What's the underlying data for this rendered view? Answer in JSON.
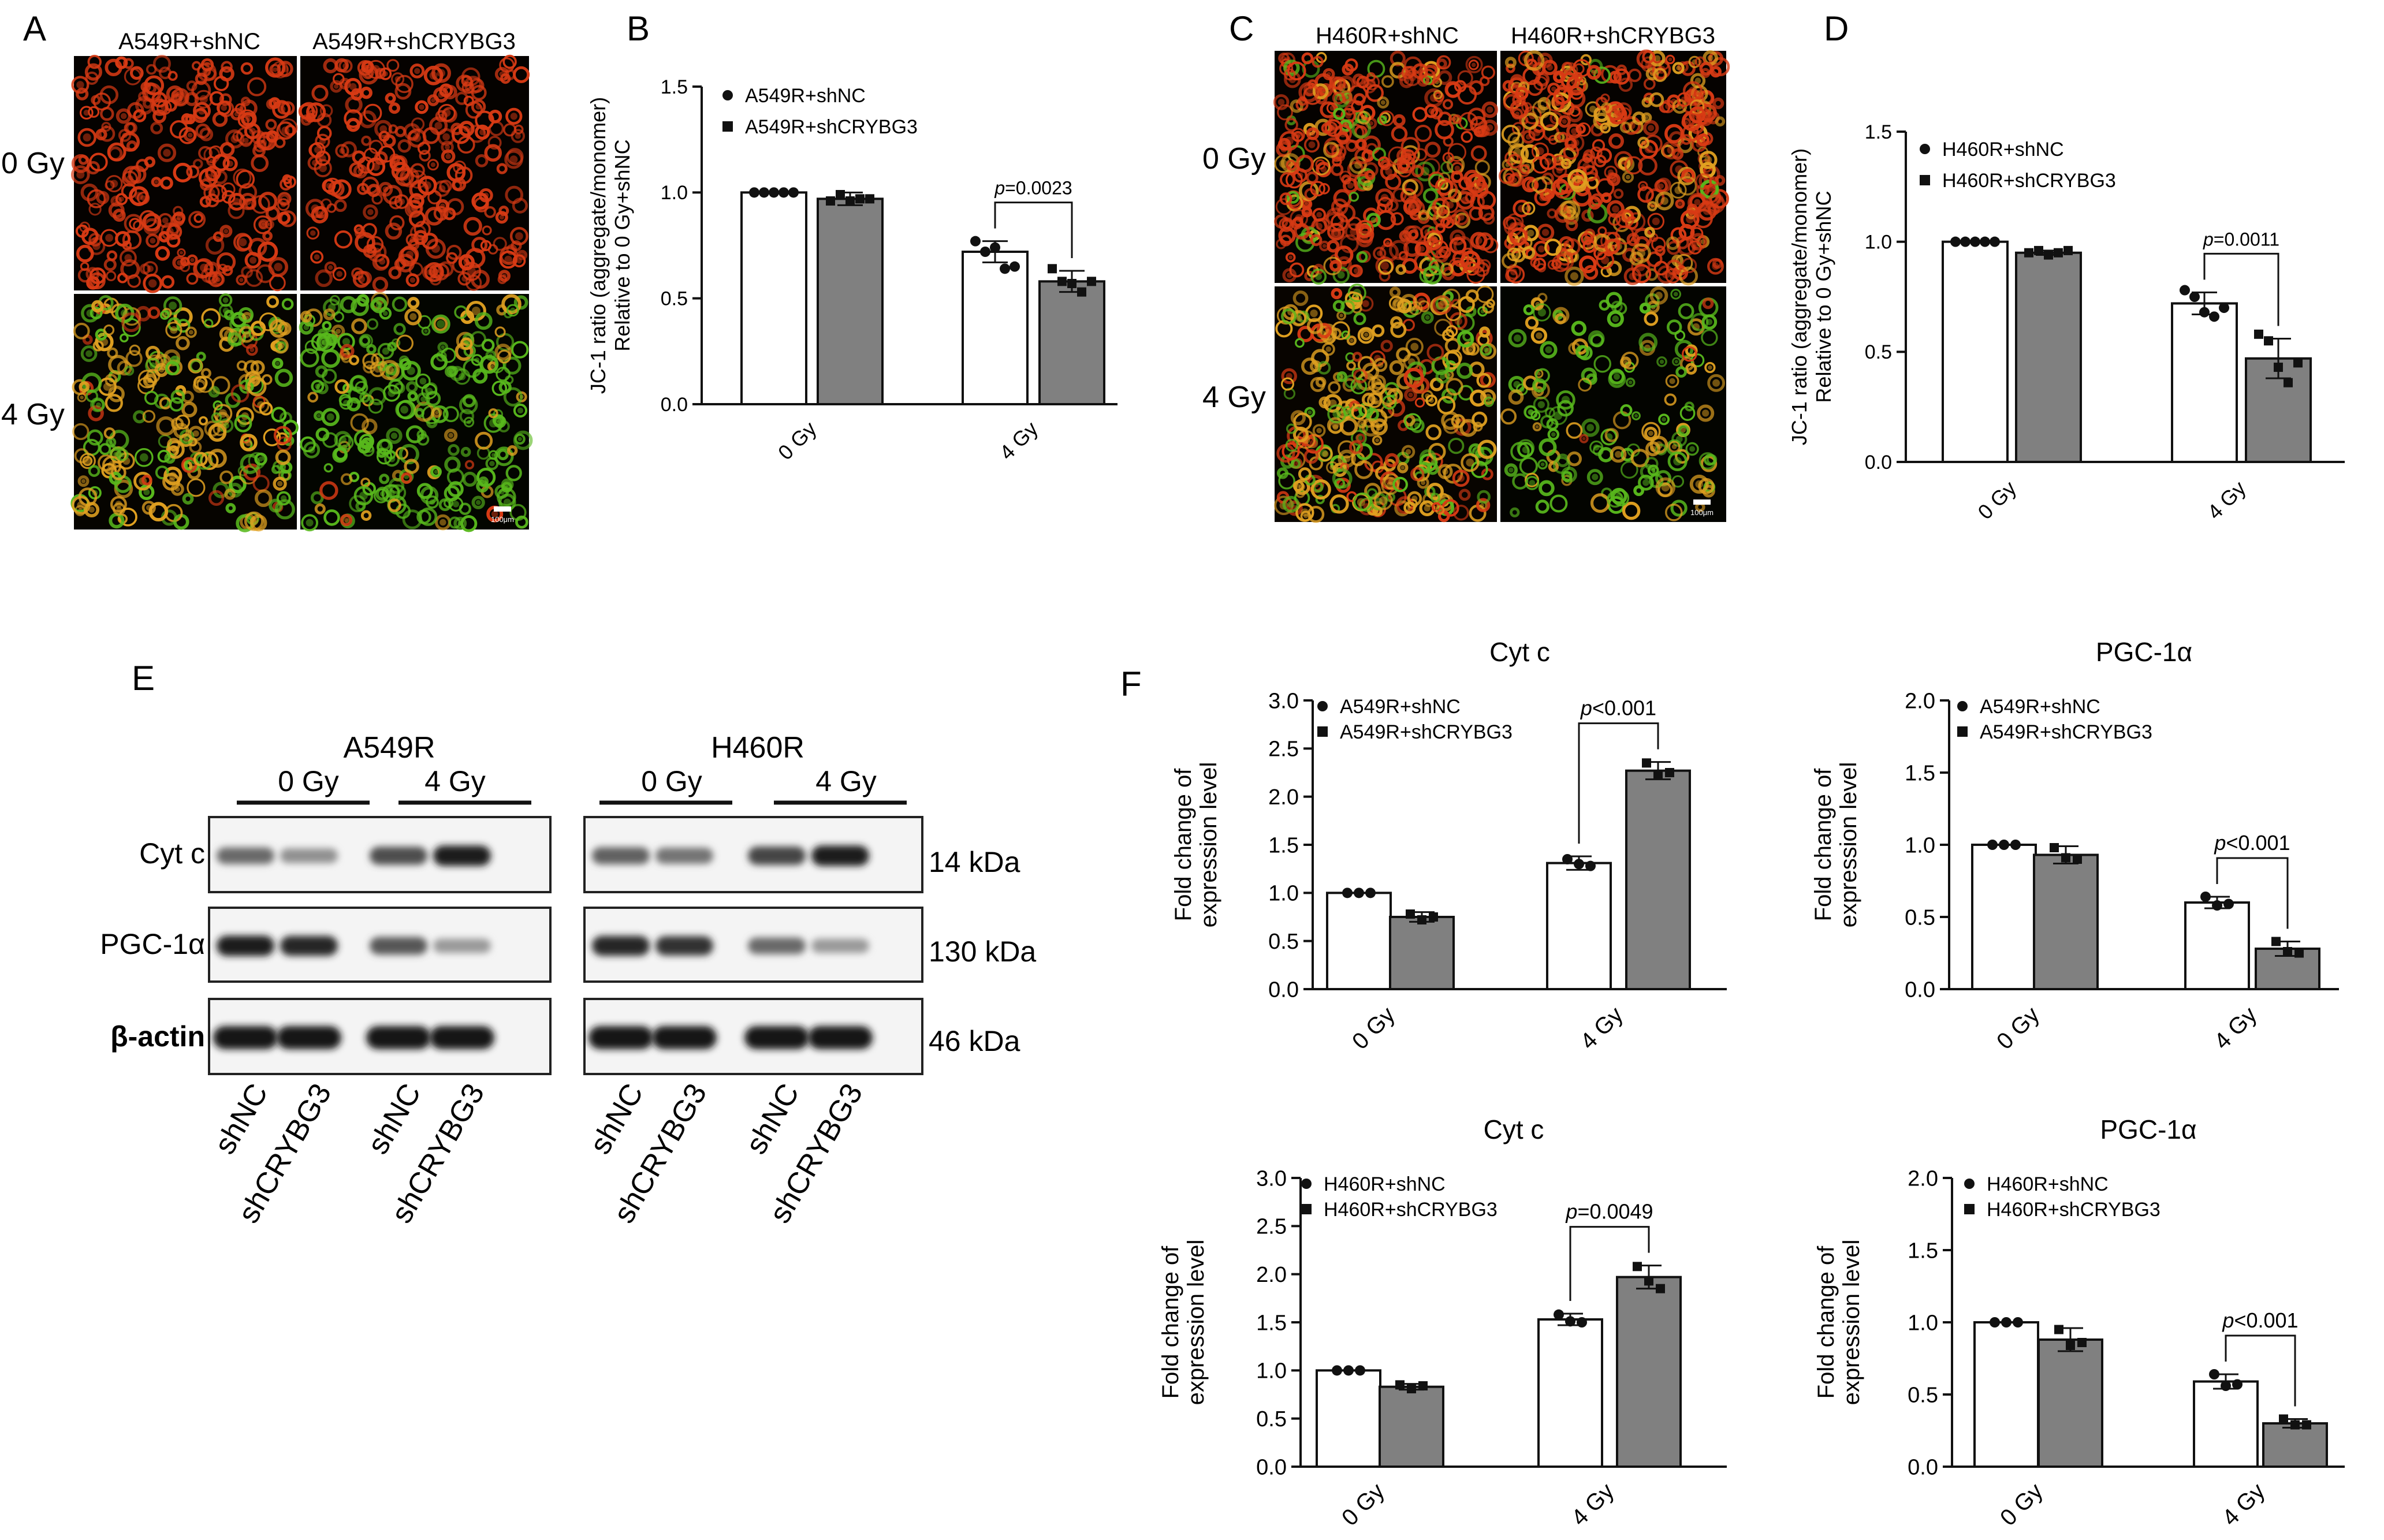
{
  "panels": {
    "A": "A",
    "B": "B",
    "C": "C",
    "D": "D",
    "E": "E",
    "F": "F"
  },
  "colors": {
    "white_bar": "#ffffff",
    "gray_bar": "#808080",
    "axis": "#111111",
    "red_cells": "#d83a14",
    "green_cells": "#58b81c",
    "orange_cells": "#e0a020",
    "blot_bg": "#f4f4f4"
  },
  "panel_A": {
    "col_labels": [
      "A549R+shNC",
      "A549R+shCRYBG3"
    ],
    "row_labels": [
      "0 Gy",
      "4 Gy"
    ],
    "scale_bar": "100μm"
  },
  "panel_C": {
    "col_labels": [
      "H460R+shNC",
      "H460R+shCRYBG3"
    ],
    "row_labels": [
      "0 Gy",
      "4 Gy"
    ],
    "scale_bar": "100μm"
  },
  "panel_E": {
    "cell_lines": [
      "A549R",
      "H460R"
    ],
    "dose_labels": [
      "0 Gy",
      "4 Gy",
      "0 Gy",
      "4 Gy"
    ],
    "proteins": [
      "Cyt c",
      "PGC-1α",
      "β-actin"
    ],
    "sizes": [
      "14 kDa",
      "130 kDa",
      "46 kDa"
    ],
    "lanes": [
      "shNC",
      "shCRYBG3",
      "shNC",
      "shCRYBG3",
      "shNC",
      "shCRYBG3",
      "shNC",
      "shCRYBG3"
    ],
    "band_intensity": [
      [
        0.55,
        0.35,
        0.7,
        0.95,
        0.6,
        0.5,
        0.75,
        0.95
      ],
      [
        0.95,
        0.9,
        0.65,
        0.3,
        0.9,
        0.85,
        0.55,
        0.3
      ],
      [
        1.0,
        1.0,
        1.0,
        1.0,
        1.0,
        1.0,
        1.0,
        1.0
      ]
    ]
  },
  "chart_data": [
    {
      "id": "B",
      "type": "bar",
      "title": "",
      "categories": [
        "0 Gy",
        "4 Gy"
      ],
      "series": [
        {
          "name": "A549R+shNC",
          "values": [
            1.0,
            0.72
          ],
          "sd": [
            0.0,
            0.05
          ],
          "points": [
            [
              1.0,
              1.0,
              1.0,
              1.0,
              1.0
            ],
            [
              0.77,
              0.72,
              0.74,
              0.64,
              0.65
            ]
          ]
        },
        {
          "name": "A549R+shCRYBG3",
          "values": [
            0.97,
            0.58
          ],
          "sd": [
            0.03,
            0.05
          ],
          "points": [
            [
              0.96,
              0.99,
              0.96,
              0.97,
              0.97
            ],
            [
              0.64,
              0.58,
              0.57,
              0.53,
              0.58
            ]
          ]
        }
      ],
      "ylabel": [
        "JC-1 ratio (aggregate/monomer)",
        "Relative to 0 Gy+shNC"
      ],
      "ylim": [
        0,
        1.5
      ],
      "yticks": [
        "0.0",
        "0.5",
        "1.0",
        "1.5"
      ],
      "pvalue": {
        "p": "p",
        "val": "=0.0023"
      }
    },
    {
      "id": "D",
      "type": "bar",
      "title": "",
      "categories": [
        "0 Gy",
        "4 Gy"
      ],
      "series": [
        {
          "name": "H460R+shNC",
          "values": [
            1.0,
            0.72
          ],
          "sd": [
            0.0,
            0.05
          ],
          "points": [
            [
              1.0,
              1.0,
              1.0,
              1.0,
              1.0
            ],
            [
              0.78,
              0.75,
              0.68,
              0.66,
              0.7
            ]
          ]
        },
        {
          "name": "H460R+shCRYBG3",
          "values": [
            0.95,
            0.47
          ],
          "sd": [
            0.01,
            0.09
          ],
          "points": [
            [
              0.95,
              0.96,
              0.94,
              0.95,
              0.96
            ],
            [
              0.58,
              0.55,
              0.43,
              0.36,
              0.45
            ]
          ]
        }
      ],
      "ylabel": [
        "JC-1 ratio (aggregate/monomer)",
        "Relative to 0 Gy+shNC"
      ],
      "ylim": [
        0,
        1.5
      ],
      "yticks": [
        "0.0",
        "0.5",
        "1.0",
        "1.5"
      ],
      "pvalue": {
        "p": "p",
        "val": "=0.0011"
      }
    },
    {
      "id": "F1",
      "type": "bar",
      "title": "Cyt c",
      "categories": [
        "0 Gy",
        "4 Gy"
      ],
      "series": [
        {
          "name": "A549R+shNC",
          "values": [
            1.0,
            1.31
          ],
          "sd": [
            0.0,
            0.07
          ],
          "points": [
            [
              1.0,
              1.0,
              1.0
            ],
            [
              1.35,
              1.3,
              1.28
            ]
          ]
        },
        {
          "name": "A549R+shCRYBG3",
          "values": [
            0.75,
            2.27
          ],
          "sd": [
            0.05,
            0.09
          ],
          "points": [
            [
              0.78,
              0.72,
              0.75
            ],
            [
              2.35,
              2.22,
              2.25
            ]
          ]
        }
      ],
      "ylabel": [
        "Fold change of",
        "expression level"
      ],
      "ylim": [
        0,
        3
      ],
      "yticks": [
        "0.0",
        "0.5",
        "1.0",
        "1.5",
        "2.0",
        "2.5",
        "3.0"
      ],
      "pvalue": {
        "p": "p",
        "val": "<0.001"
      }
    },
    {
      "id": "F2",
      "type": "bar",
      "title": "PGC-1α",
      "categories": [
        "0 Gy",
        "4 Gy"
      ],
      "series": [
        {
          "name": "A549R+shNC",
          "values": [
            1.0,
            0.6
          ],
          "sd": [
            0.0,
            0.04
          ],
          "points": [
            [
              1.0,
              1.0,
              1.0
            ],
            [
              0.64,
              0.58,
              0.59
            ]
          ]
        },
        {
          "name": "A549R+shCRYBG3",
          "values": [
            0.93,
            0.28
          ],
          "sd": [
            0.06,
            0.05
          ],
          "points": [
            [
              0.98,
              0.91,
              0.9
            ],
            [
              0.33,
              0.26,
              0.25
            ]
          ]
        }
      ],
      "ylabel": [
        "Fold change of",
        "expression level"
      ],
      "ylim": [
        0,
        2
      ],
      "yticks": [
        "0.0",
        "0.5",
        "1.0",
        "1.5",
        "2.0"
      ],
      "pvalue": {
        "p": "p",
        "val": "<0.001"
      }
    },
    {
      "id": "F3",
      "type": "bar",
      "title": "Cyt c",
      "categories": [
        "0 Gy",
        "4 Gy"
      ],
      "series": [
        {
          "name": "H460R+shNC",
          "values": [
            1.0,
            1.53
          ],
          "sd": [
            0.0,
            0.06
          ],
          "points": [
            [
              1.0,
              1.0,
              1.0
            ],
            [
              1.58,
              1.51,
              1.5
            ]
          ]
        },
        {
          "name": "H460R+shCRYBG3",
          "values": [
            0.83,
            1.97
          ],
          "sd": [
            0.03,
            0.12
          ],
          "points": [
            [
              0.85,
              0.81,
              0.84
            ],
            [
              2.08,
              1.93,
              1.85
            ]
          ]
        }
      ],
      "ylabel": [
        "Fold change of",
        "expression level"
      ],
      "ylim": [
        0,
        3
      ],
      "yticks": [
        "0.0",
        "0.5",
        "1.0",
        "1.5",
        "2.0",
        "2.5",
        "3.0"
      ],
      "pvalue": {
        "p": "p",
        "val": "=0.0049"
      }
    },
    {
      "id": "F4",
      "type": "bar",
      "title": "PGC-1α",
      "categories": [
        "0 Gy",
        "4 Gy"
      ],
      "series": [
        {
          "name": "H460R+shNC",
          "values": [
            1.0,
            0.59
          ],
          "sd": [
            0.0,
            0.05
          ],
          "points": [
            [
              1.0,
              1.0,
              1.0
            ],
            [
              0.64,
              0.56,
              0.57
            ]
          ]
        },
        {
          "name": "H460R+shCRYBG3",
          "values": [
            0.88,
            0.3
          ],
          "sd": [
            0.08,
            0.03
          ],
          "points": [
            [
              0.95,
              0.84,
              0.86
            ],
            [
              0.33,
              0.29,
              0.29
            ]
          ]
        }
      ],
      "ylabel": [
        "Fold change of",
        "expression level"
      ],
      "ylim": [
        0,
        2
      ],
      "yticks": [
        "0.0",
        "0.5",
        "1.0",
        "1.5",
        "2.0"
      ],
      "pvalue": {
        "p": "p",
        "val": "<0.001"
      }
    }
  ]
}
